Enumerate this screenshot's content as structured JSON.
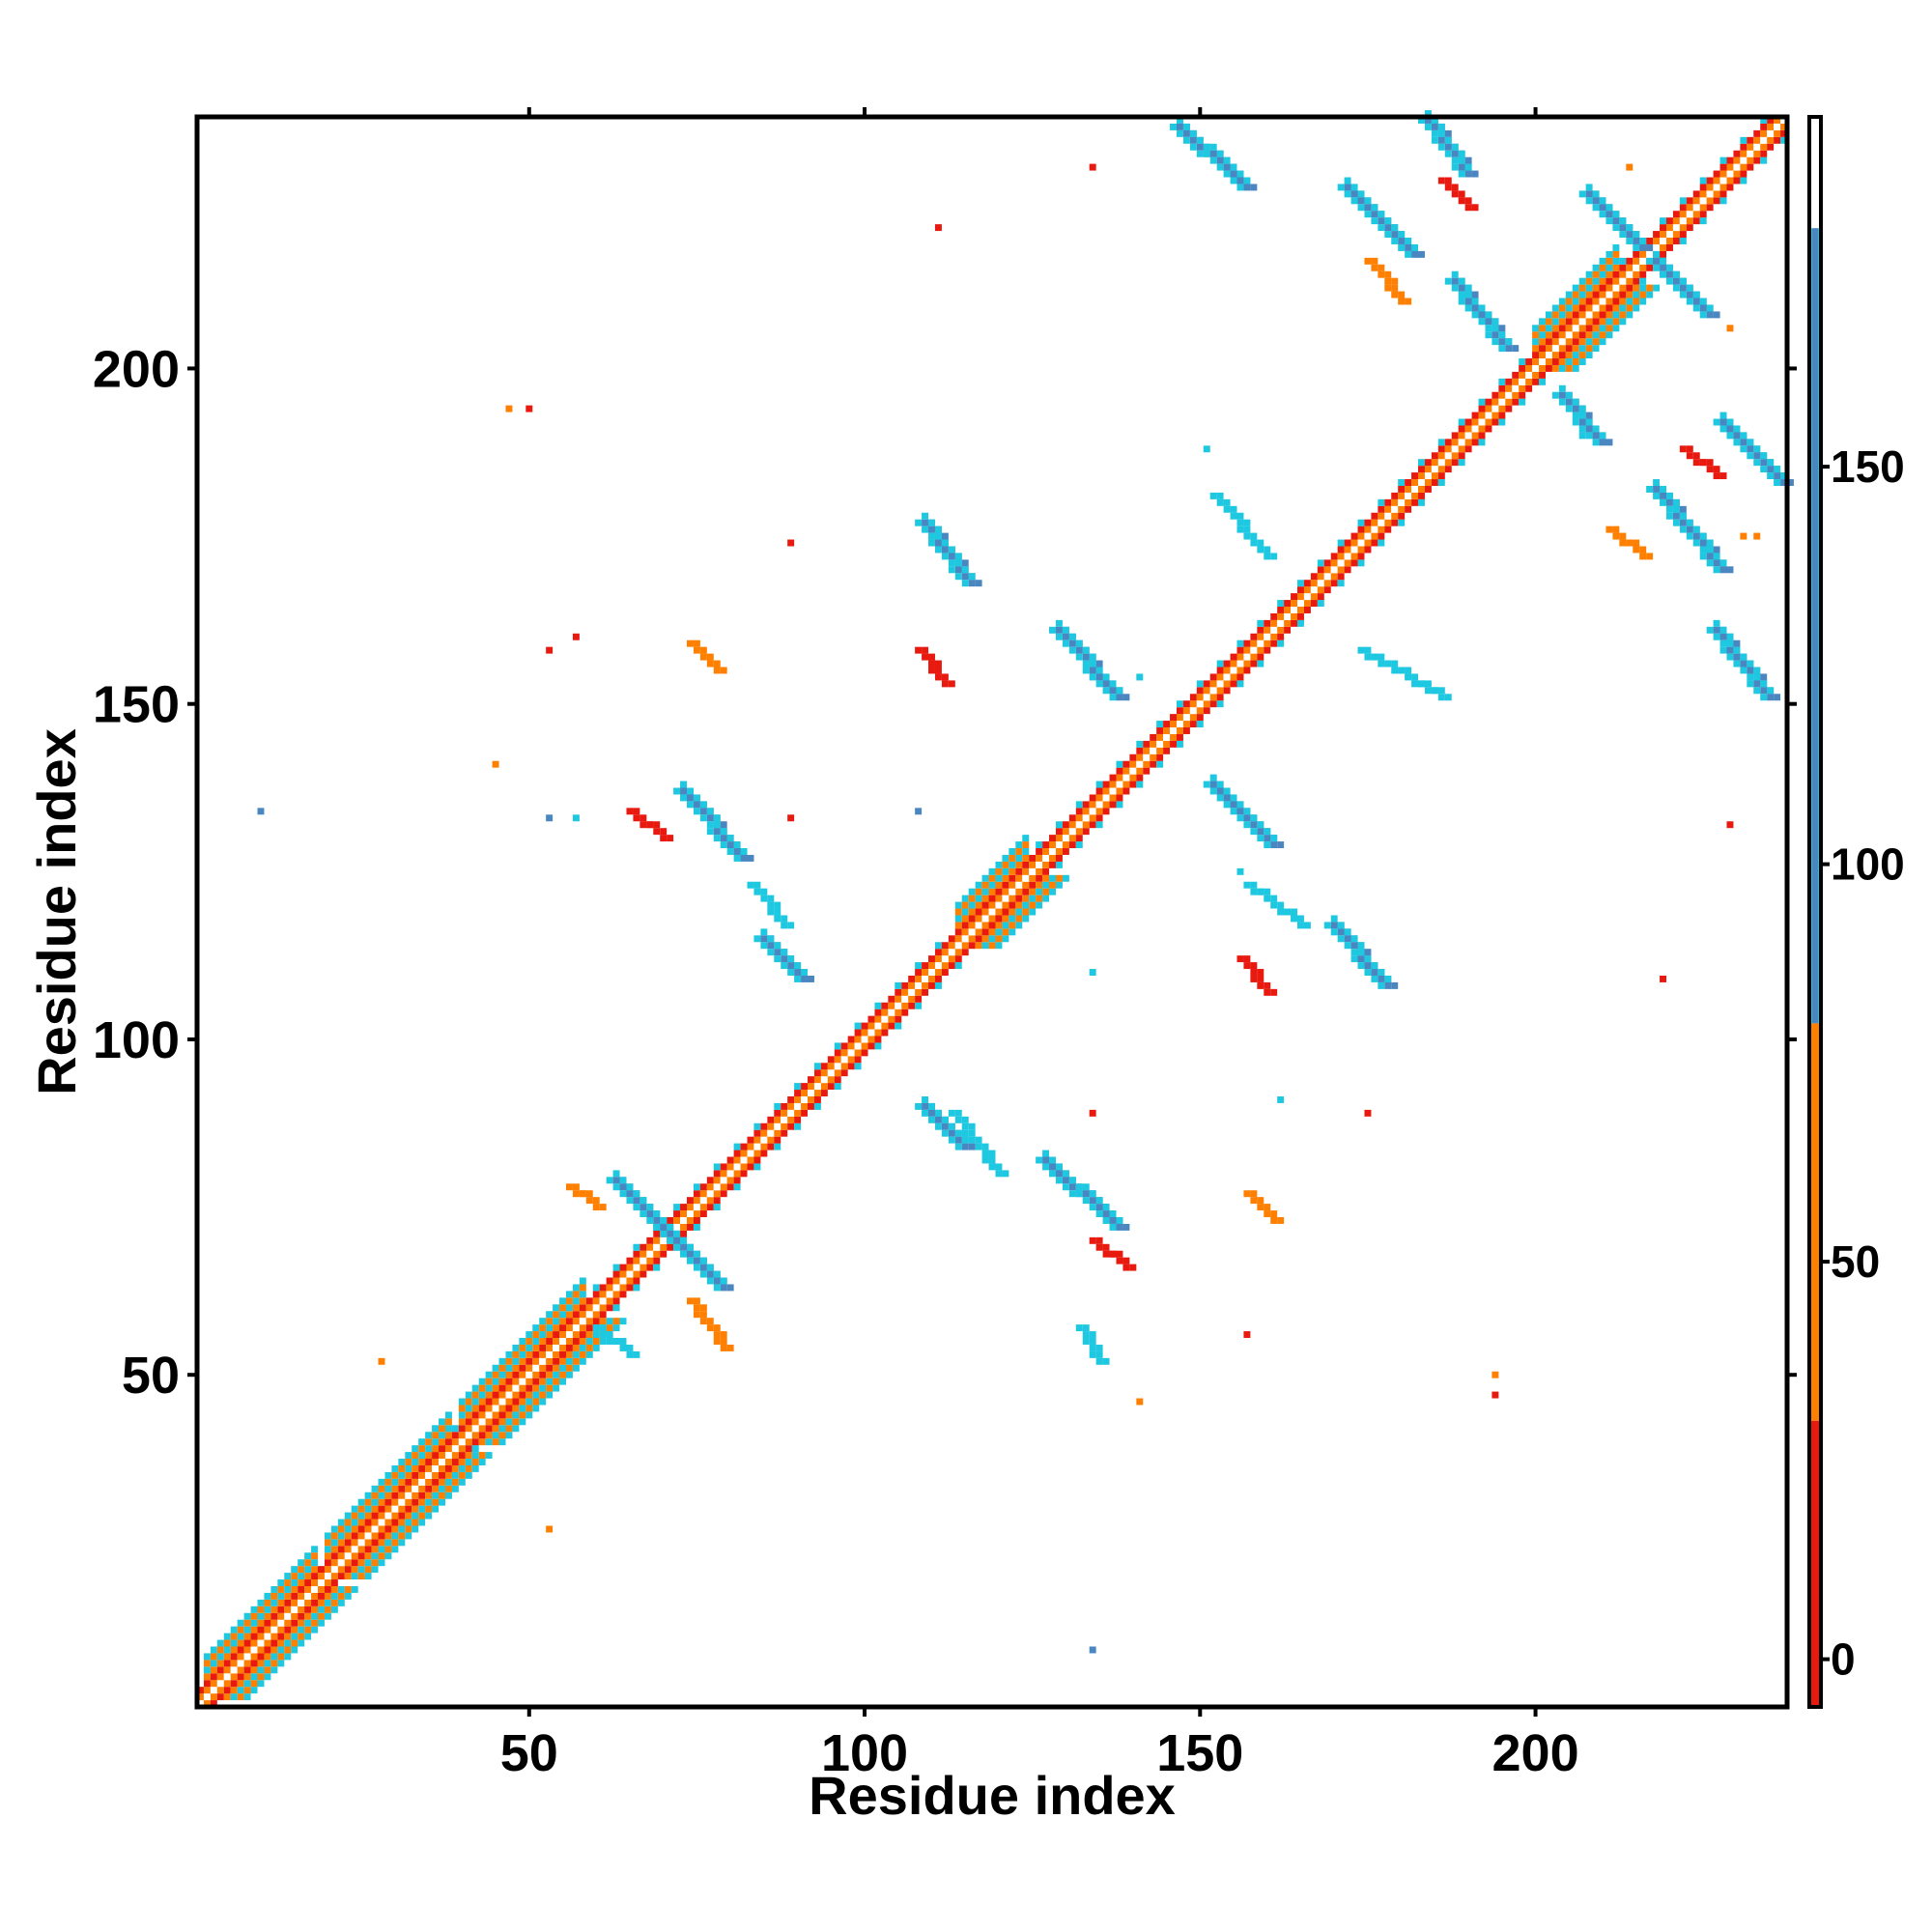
{
  "chart_data": {
    "type": "heatmap",
    "title": "",
    "xlabel": "Residue index",
    "ylabel": "Residue index",
    "xlim": [
      1,
      237
    ],
    "ylim": [
      1,
      237
    ],
    "xticks": [
      50,
      100,
      150,
      200
    ],
    "yticks": [
      50,
      100,
      150,
      200
    ],
    "grid": false,
    "legend": "none",
    "colorbar": {
      "ticks": [
        0,
        50,
        100,
        150
      ],
      "range": [
        -6,
        194
      ],
      "stops": [
        {
          "from": -6,
          "to": 30,
          "color": "#e8190f"
        },
        {
          "from": 30,
          "to": 80,
          "color": "#ff7f00"
        },
        {
          "from": 80,
          "to": 180,
          "color": "#1ec8e0"
        },
        {
          "from": 180,
          "to": 194,
          "color": "#ffffff"
        }
      ],
      "inner_band": {
        "from": 80,
        "to": 180,
        "color": "#4a86c0"
      }
    },
    "diagonal": {
      "from": 1,
      "to": 237,
      "color_center": "#ffffff",
      "color_inner": "#ff7f00",
      "color_outer": "#e8190f"
    },
    "helix_bands": [
      {
        "from": 2,
        "to": 18
      },
      {
        "from": 20,
        "to": 38
      },
      {
        "from": 40,
        "to": 58
      },
      {
        "from": 114,
        "to": 124
      },
      {
        "from": 200,
        "to": 212
      }
    ],
    "sheet_contacts": [
      {
        "x": [
          63,
          70
        ],
        "y": [
          79,
          72
        ],
        "color": "#4a86c0"
      },
      {
        "x": [
          70,
          79
        ],
        "y": [
          72,
          63
        ],
        "color": "#4a86c0"
      },
      {
        "x": [
          73,
          82
        ],
        "y": [
          137,
          127
        ],
        "color": "#4a86c0"
      },
      {
        "x": [
          85,
          91
        ],
        "y": [
          115,
          109
        ],
        "color": "#4a86c0"
      },
      {
        "x": [
          109,
          116
        ],
        "y": [
          177,
          168
        ],
        "color": "#4a86c0"
      },
      {
        "x": [
          109,
          115
        ],
        "y": [
          90,
          84
        ],
        "color": "#4a86c0"
      },
      {
        "x": [
          127,
          138
        ],
        "y": [
          82,
          72
        ],
        "color": "#4a86c0"
      },
      {
        "x": [
          129,
          138
        ],
        "y": [
          161,
          151
        ],
        "color": "#4a86c0"
      },
      {
        "x": [
          152,
          161
        ],
        "y": [
          138,
          129
        ],
        "color": "#4a86c0"
      },
      {
        "x": [
          147,
          157
        ],
        "y": [
          236,
          227
        ],
        "color": "#4a86c0"
      },
      {
        "x": [
          170,
          178
        ],
        "y": [
          117,
          108
        ],
        "color": "#4a86c0"
      },
      {
        "x": [
          172,
          182
        ],
        "y": [
          227,
          217
        ],
        "color": "#4a86c0"
      },
      {
        "x": [
          184,
          190
        ],
        "y": [
          237,
          229
        ],
        "color": "#4a86c0"
      },
      {
        "x": [
          188,
          196
        ],
        "y": [
          213,
          203
        ],
        "color": "#4a86c0"
      },
      {
        "x": [
          208,
          216
        ],
        "y": [
          226,
          218
        ],
        "color": "#4a86c0"
      },
      {
        "x": [
          218,
          226
        ],
        "y": [
          216,
          208
        ],
        "color": "#4a86c0"
      },
      {
        "x": [
          204,
          210
        ],
        "y": [
          196,
          189
        ],
        "color": "#4a86c0"
      },
      {
        "x": [
          218,
          228
        ],
        "y": [
          182,
          170
        ],
        "color": "#4a86c0"
      },
      {
        "x": [
          228,
          237
        ],
        "y": [
          192,
          183
        ],
        "color": "#4a86c0"
      },
      {
        "x": [
          227,
          235
        ],
        "y": [
          161,
          151
        ],
        "color": "#4a86c0"
      }
    ],
    "patches": [
      {
        "x": [
          108,
          112
        ],
        "y": [
          158,
          153
        ],
        "color": "#e8190f"
      },
      {
        "x": [
          156,
          160
        ],
        "y": [
          112,
          107
        ],
        "color": "#e8190f"
      },
      {
        "x": [
          65,
          70
        ],
        "y": [
          134,
          130
        ],
        "color": "#e8190f"
      },
      {
        "x": [
          74,
          78
        ],
        "y": [
          159,
          155
        ],
        "color": "#ff7f00"
      },
      {
        "x": [
          56,
          60
        ],
        "y": [
          78,
          75
        ],
        "color": "#ff7f00"
      },
      {
        "x": [
          74,
          79
        ],
        "y": [
          61,
          54
        ],
        "color": "#ff7f00"
      },
      {
        "x": [
          134,
          139
        ],
        "y": [
          70,
          66
        ],
        "color": "#e8190f"
      },
      {
        "x": [
          157,
          161
        ],
        "y": [
          77,
          73
        ],
        "color": "#ff7f00"
      },
      {
        "x": [
          175,
          180
        ],
        "y": [
          216,
          210
        ],
        "color": "#ff7f00"
      },
      {
        "x": [
          186,
          190
        ],
        "y": [
          228,
          224
        ],
        "color": "#e8190f"
      },
      {
        "x": [
          211,
          216
        ],
        "y": [
          176,
          172
        ],
        "color": "#ff7f00"
      },
      {
        "x": [
          222,
          227
        ],
        "y": [
          188,
          184
        ],
        "color": "#e8190f"
      },
      {
        "x": [
          60,
          65
        ],
        "y": [
          57,
          53
        ],
        "color": "#1ec8e0"
      },
      {
        "x": [
          132,
          135
        ],
        "y": [
          57,
          52
        ],
        "color": "#1ec8e0"
      },
      {
        "x": [
          83,
          88
        ],
        "y": [
          123,
          117
        ],
        "color": "#1ec8e0"
      },
      {
        "x": [
          113,
          120
        ],
        "y": [
          89,
          80
        ],
        "color": "#1ec8e0"
      },
      {
        "x": [
          152,
          160
        ],
        "y": [
          181,
          172
        ],
        "color": "#1ec8e0"
      },
      {
        "x": [
          157,
          165
        ],
        "y": [
          123,
          117
        ],
        "color": "#1ec8e0"
      },
      {
        "x": [
          174,
          186
        ],
        "y": [
          158,
          151
        ],
        "color": "#1ec8e0"
      }
    ],
    "dots": [
      {
        "x": 10,
        "y": 134,
        "color": "#4a86c0"
      },
      {
        "x": 45,
        "y": 141,
        "color": "#ff7f00"
      },
      {
        "x": 47,
        "y": 194,
        "color": "#ff7f00"
      },
      {
        "x": 50,
        "y": 194,
        "color": "#e8190f"
      },
      {
        "x": 53,
        "y": 133,
        "color": "#4a86c0"
      },
      {
        "x": 57,
        "y": 133,
        "color": "#1ec8e0"
      },
      {
        "x": 53,
        "y": 27,
        "color": "#ff7f00"
      },
      {
        "x": 28,
        "y": 52,
        "color": "#ff7f00"
      },
      {
        "x": 53,
        "y": 158,
        "color": "#e8190f"
      },
      {
        "x": 57,
        "y": 160,
        "color": "#e8190f"
      },
      {
        "x": 89,
        "y": 174,
        "color": "#e8190f"
      },
      {
        "x": 89,
        "y": 133,
        "color": "#e8190f"
      },
      {
        "x": 108,
        "y": 134,
        "color": "#4a86c0"
      },
      {
        "x": 111,
        "y": 221,
        "color": "#e8190f"
      },
      {
        "x": 134,
        "y": 230,
        "color": "#e8190f"
      },
      {
        "x": 134,
        "y": 89,
        "color": "#e8190f"
      },
      {
        "x": 134,
        "y": 110,
        "color": "#1ec8e0"
      },
      {
        "x": 134,
        "y": 9,
        "color": "#4a86c0"
      },
      {
        "x": 141,
        "y": 46,
        "color": "#ff7f00"
      },
      {
        "x": 141,
        "y": 154,
        "color": "#1ec8e0"
      },
      {
        "x": 151,
        "y": 188,
        "color": "#1ec8e0"
      },
      {
        "x": 157,
        "y": 56,
        "color": "#e8190f"
      },
      {
        "x": 175,
        "y": 89,
        "color": "#e8190f"
      },
      {
        "x": 194,
        "y": 50,
        "color": "#ff7f00"
      },
      {
        "x": 194,
        "y": 47,
        "color": "#e8190f"
      },
      {
        "x": 219,
        "y": 109,
        "color": "#e8190f"
      },
      {
        "x": 229,
        "y": 132,
        "color": "#e8190f"
      },
      {
        "x": 214,
        "y": 230,
        "color": "#ff7f00"
      },
      {
        "x": 229,
        "y": 206,
        "color": "#ff7f00"
      },
      {
        "x": 231,
        "y": 175,
        "color": "#ff7f00"
      },
      {
        "x": 233,
        "y": 175,
        "color": "#ff7f00"
      },
      {
        "x": 156,
        "y": 125,
        "color": "#1ec8e0"
      },
      {
        "x": 162,
        "y": 91,
        "color": "#1ec8e0"
      },
      {
        "x": 207,
        "y": 190,
        "color": "#1ec8e0"
      }
    ]
  }
}
